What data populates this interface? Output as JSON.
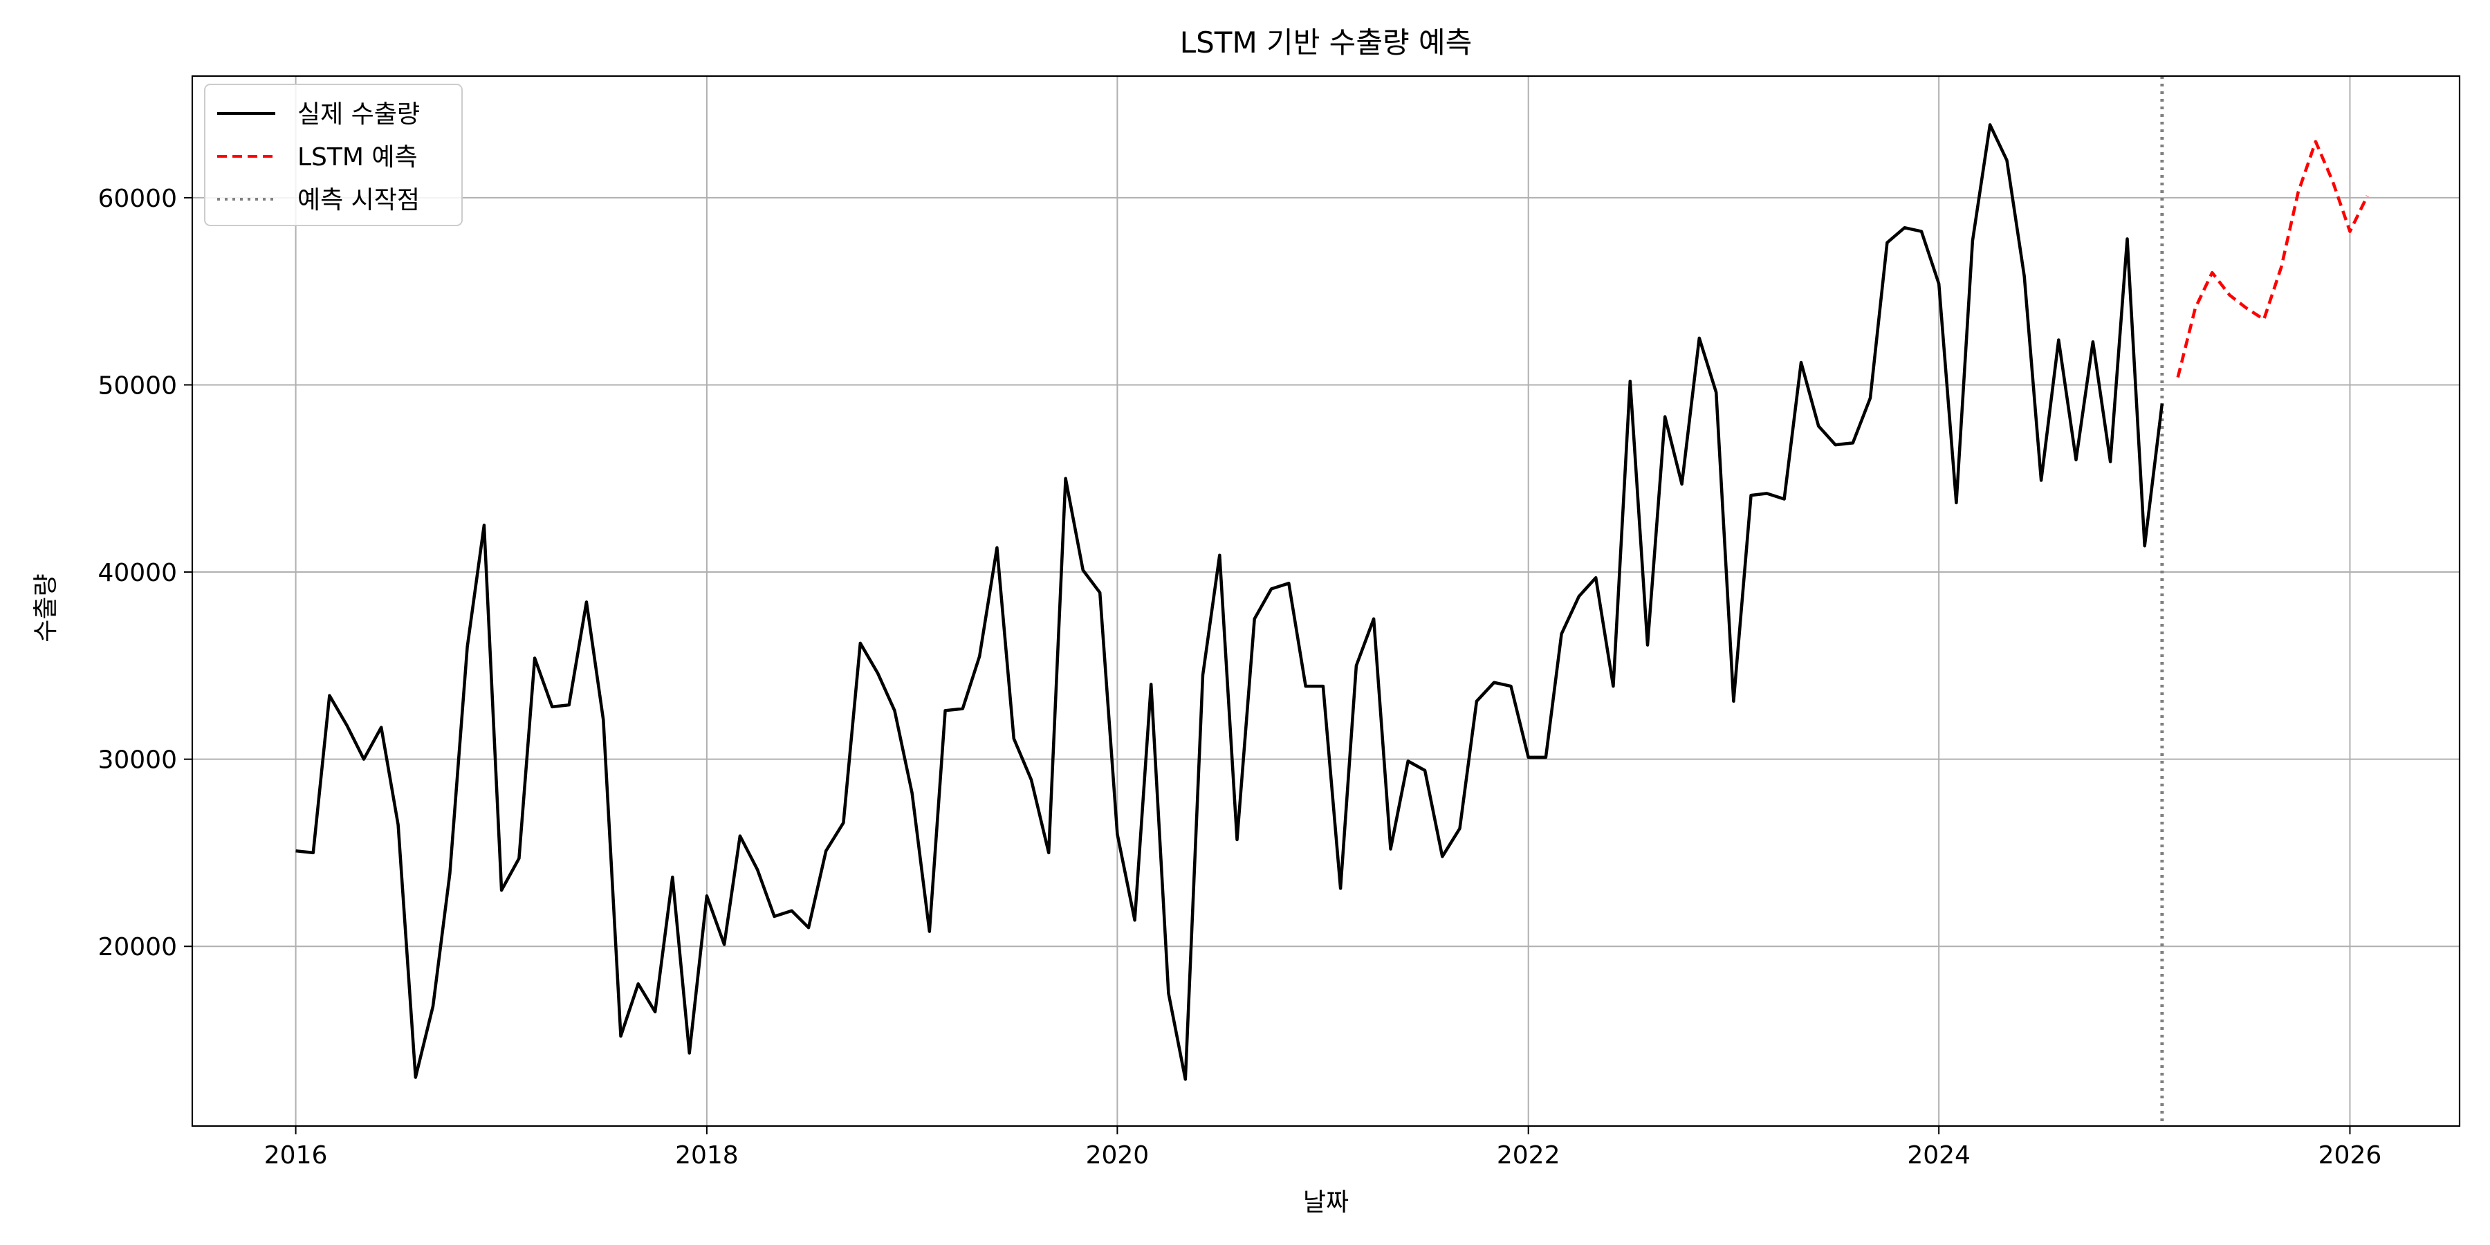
{
  "chart_data": {
    "type": "line",
    "title": "LSTM 기반 수출량 예측",
    "xlabel": "날짜",
    "ylabel": "수출량",
    "xlim": [
      "2015-07-01",
      "2026-07-15"
    ],
    "ylim": [
      10400,
      66500
    ],
    "x_ticks": [
      {
        "date": "2016-01-01",
        "label": "2016"
      },
      {
        "date": "2018-01-01",
        "label": "2018"
      },
      {
        "date": "2020-01-01",
        "label": "2020"
      },
      {
        "date": "2022-01-01",
        "label": "2022"
      },
      {
        "date": "2024-01-01",
        "label": "2024"
      },
      {
        "date": "2026-01-01",
        "label": "2026"
      }
    ],
    "y_ticks": [
      {
        "value": 20000,
        "label": "20000"
      },
      {
        "value": 30000,
        "label": "30000"
      },
      {
        "value": 40000,
        "label": "40000"
      },
      {
        "value": 50000,
        "label": "50000"
      },
      {
        "value": 60000,
        "label": "60000"
      }
    ],
    "grid": true,
    "legend_position": "top-left",
    "series": [
      {
        "name": "실제 수출량",
        "color": "#000000",
        "line_style": "solid",
        "x": [
          "2016-01",
          "2016-02",
          "2016-03",
          "2016-04",
          "2016-05",
          "2016-06",
          "2016-07",
          "2016-08",
          "2016-09",
          "2016-10",
          "2016-11",
          "2016-12",
          "2017-01",
          "2017-02",
          "2017-03",
          "2017-04",
          "2017-05",
          "2017-06",
          "2017-07",
          "2017-08",
          "2017-09",
          "2017-10",
          "2017-11",
          "2017-12",
          "2018-01",
          "2018-02",
          "2018-03",
          "2018-04",
          "2018-05",
          "2018-06",
          "2018-07",
          "2018-08",
          "2018-09",
          "2018-10",
          "2018-11",
          "2018-12",
          "2019-01",
          "2019-02",
          "2019-03",
          "2019-04",
          "2019-05",
          "2019-06",
          "2019-07",
          "2019-08",
          "2019-09",
          "2019-10",
          "2019-11",
          "2019-12",
          "2020-01",
          "2020-02",
          "2020-03",
          "2020-04",
          "2020-05",
          "2020-06",
          "2020-07",
          "2020-08",
          "2020-09",
          "2020-10",
          "2020-11",
          "2020-12",
          "2021-01",
          "2021-02",
          "2021-03",
          "2021-04",
          "2021-05",
          "2021-06",
          "2021-07",
          "2021-08",
          "2021-09",
          "2021-10",
          "2021-11",
          "2021-12",
          "2022-01",
          "2022-02",
          "2022-03",
          "2022-04",
          "2022-05",
          "2022-06",
          "2022-07",
          "2022-08",
          "2022-09",
          "2022-10",
          "2022-11",
          "2022-12",
          "2023-01",
          "2023-02",
          "2023-03",
          "2023-04",
          "2023-05",
          "2023-06",
          "2023-07",
          "2023-08",
          "2023-09",
          "2023-10",
          "2023-11",
          "2023-12",
          "2024-01",
          "2024-02",
          "2024-03",
          "2024-04",
          "2024-05",
          "2024-06",
          "2024-07",
          "2024-08",
          "2024-09",
          "2024-10",
          "2024-11",
          "2024-12",
          "2025-01",
          "2025-02"
        ],
        "values": [
          25100,
          25000,
          33400,
          31800,
          30000,
          31700,
          26500,
          13000,
          16800,
          23900,
          36000,
          42500,
          23000,
          24700,
          35400,
          32800,
          32900,
          38400,
          32100,
          15200,
          18000,
          16500,
          23700,
          14300,
          22700,
          20100,
          25900,
          24100,
          21600,
          21900,
          21000,
          25100,
          26600,
          36200,
          34600,
          32600,
          28200,
          20800,
          32600,
          32700,
          35500,
          41300,
          31100,
          28900,
          25000,
          45000,
          40100,
          38900,
          26000,
          21400,
          34000,
          17500,
          12900,
          34500,
          40900,
          25700,
          37500,
          39100,
          39400,
          33900,
          33900,
          23100,
          35000,
          37500,
          25200,
          29900,
          29400,
          24800,
          26300,
          33100,
          34100,
          33900,
          30100,
          30100,
          36700,
          38700,
          39700,
          33900,
          50200,
          36100,
          48300,
          44700,
          52500,
          49600,
          33100,
          44100,
          44200,
          43900,
          51200,
          47800,
          46800,
          46900,
          49300,
          57600,
          58400,
          58200,
          55400,
          43700,
          57700,
          63900,
          62000,
          55800,
          44900,
          52400,
          46000,
          52300,
          45900,
          57800,
          41400,
          49000
        ]
      },
      {
        "name": "LSTM 예측",
        "color": "#ff0000",
        "line_style": "dashed",
        "x": [
          "2025-03",
          "2025-04",
          "2025-05",
          "2025-06",
          "2025-07",
          "2025-08",
          "2025-09",
          "2025-10",
          "2025-11",
          "2025-12",
          "2026-01",
          "2026-02"
        ],
        "values": [
          50400,
          54100,
          56000,
          54800,
          54100,
          53500,
          56300,
          60300,
          63000,
          60900,
          58200,
          60100
        ]
      }
    ],
    "vertical_line": {
      "name": "예측 시작점",
      "date": "2025-02-01",
      "color": "#808080",
      "line_style": "dotted"
    }
  }
}
